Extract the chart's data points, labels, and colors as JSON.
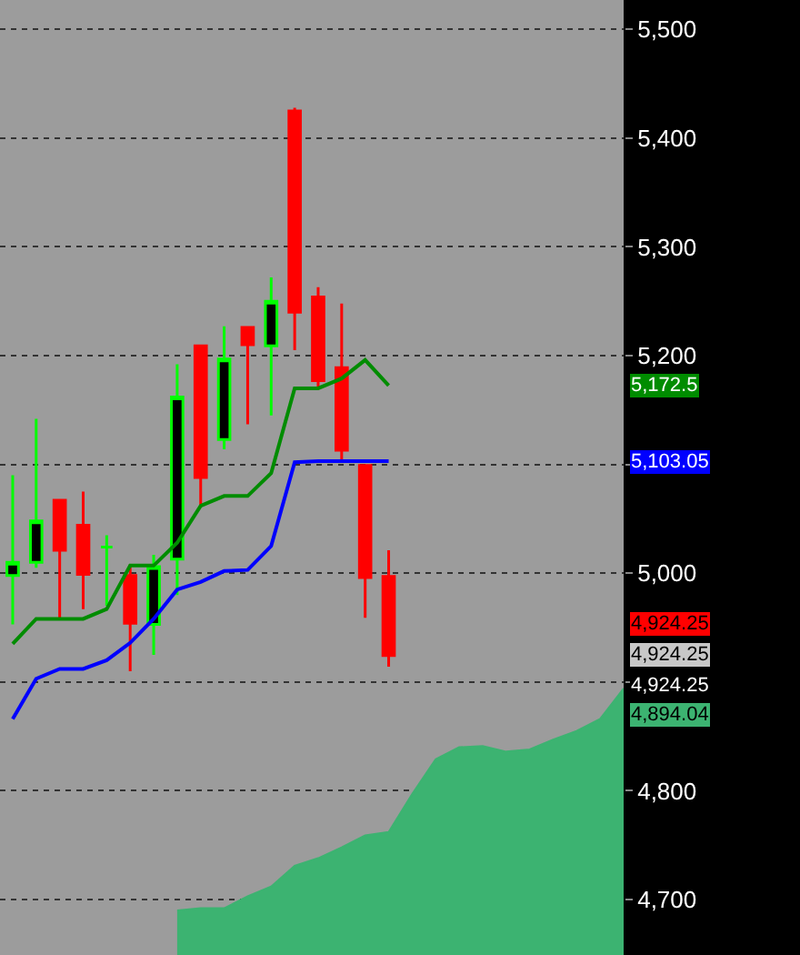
{
  "chart_data": {
    "type": "candlestick",
    "categories": [
      null,
      null,
      null,
      null,
      null,
      null,
      null,
      null,
      null,
      null,
      null,
      null,
      null,
      null,
      null,
      null,
      null,
      null,
      null,
      null,
      null,
      null,
      null,
      null,
      null,
      null,
      null
    ],
    "ohlc": [
      [
        4998,
        5090,
        4953,
        5010
      ],
      [
        5010,
        5142,
        5005,
        5048
      ],
      [
        5067,
        5067,
        4958,
        5021
      ],
      [
        5044,
        5075,
        4967,
        4999
      ],
      [
        5024,
        5035,
        4970,
        5024
      ],
      [
        4998,
        5008,
        4910,
        4954
      ],
      [
        4953,
        5017,
        4925,
        5006
      ],
      [
        5013,
        5192,
        4980,
        5162
      ],
      [
        5209,
        5209,
        5061,
        5088
      ],
      [
        5123,
        5227,
        5114,
        5197
      ],
      [
        5226,
        5226,
        5137,
        5210
      ],
      [
        5209,
        5272,
        5145,
        5250
      ],
      [
        5425,
        5428,
        5205,
        5240
      ],
      [
        5254,
        5263,
        5170,
        5177
      ],
      [
        5189,
        5248,
        5102,
        5113
      ],
      [
        5099,
        5099,
        4959,
        4996
      ],
      [
        4997,
        5021,
        4914,
        4924.25
      ],
      null,
      null,
      null,
      null,
      null,
      null,
      null,
      null,
      null,
      null
    ],
    "series": [
      {
        "type": "line",
        "color": "#008c00",
        "values": [
          4935,
          4958,
          4958,
          4958,
          4967,
          5007,
          5007,
          5028,
          5062,
          5071,
          5071,
          5092,
          5170,
          5170,
          5179,
          5196,
          5172.5,
          null,
          null,
          null,
          null,
          null,
          null,
          null,
          null,
          null,
          null
        ]
      },
      {
        "type": "line",
        "color": "#0000ff",
        "values": [
          4866,
          4903,
          4912,
          4912,
          4920,
          4936,
          4958,
          4985,
          4992,
          5002,
          5003,
          5025,
          5102,
          5103.05,
          5103.05,
          5103.05,
          5103.05,
          null,
          null,
          null,
          null,
          null,
          null,
          null,
          null,
          null,
          null
        ]
      },
      {
        "type": "area",
        "color": "#3cb371",
        "values": [
          null,
          null,
          null,
          null,
          null,
          null,
          null,
          4690,
          4692,
          4692,
          4703,
          4712,
          4731,
          4738,
          4748,
          4759,
          4762,
          4797,
          4829,
          4840,
          4841,
          4836,
          4838,
          4847,
          4855,
          4866,
          4894.04
        ]
      }
    ],
    "ylim": [
      4649,
      5527
    ],
    "yticks": [
      {
        "value": 4700,
        "label": "4,700"
      },
      {
        "value": 4800,
        "label": "4,800"
      },
      {
        "value": 4900,
        "label": null
      },
      {
        "value": 5000,
        "label": "5,000"
      },
      {
        "value": 5100,
        "label": null
      },
      {
        "value": 5200,
        "label": "5,200"
      },
      {
        "value": 5300,
        "label": "5,300"
      },
      {
        "value": 5400,
        "label": "5,400"
      },
      {
        "value": 5500,
        "label": "5,500"
      }
    ],
    "annotations": [
      "5,172.5",
      "5,103.05",
      "4,924.25",
      "4,924.25",
      "4,924.25",
      "4,894.04"
    ],
    "grid": "y",
    "tick_labels": "y"
  }
}
